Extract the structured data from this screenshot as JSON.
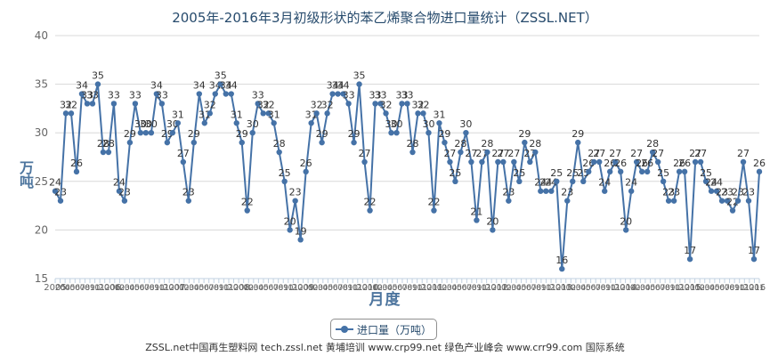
{
  "chart_data": {
    "type": "line",
    "title": "2005年-2016年3月初级形状的苯乙烯聚合物进口量统计（ZSSL.NET）",
    "ylabel": "万吨",
    "xlabel": "月度",
    "ylim": [
      15,
      40
    ],
    "yticks": [
      "15",
      "20",
      "25",
      "30",
      "35",
      "40"
    ],
    "grid": true,
    "legend_position": "bottom-center",
    "series": [
      {
        "name": "进口量（万吨）",
        "color": "#4572a7",
        "values": [
          24,
          23,
          32,
          32,
          26,
          34,
          33,
          33,
          35,
          28,
          28,
          33,
          24,
          23,
          29,
          33,
          30,
          30,
          30,
          34,
          33,
          29,
          30,
          31,
          27,
          23,
          29,
          34,
          31,
          32,
          34,
          35,
          34,
          34,
          31,
          29,
          22,
          30,
          33,
          32,
          32,
          31,
          28,
          25,
          20,
          23,
          19,
          26,
          31,
          32,
          29,
          32,
          34,
          34,
          34,
          33,
          29,
          35,
          27,
          22,
          33,
          33,
          32,
          30,
          30,
          33,
          33,
          28,
          32,
          32,
          30,
          22,
          31,
          29,
          27,
          25,
          28,
          30,
          27,
          21,
          27,
          28,
          20,
          27,
          27,
          23,
          27,
          25,
          29,
          27,
          28,
          24,
          24,
          24,
          25,
          16,
          23,
          25,
          29,
          25,
          26,
          27,
          27,
          24,
          26,
          27,
          26,
          20,
          24,
          27,
          26,
          26,
          28,
          27,
          25,
          23,
          23,
          26,
          26,
          17,
          27,
          27,
          25,
          24,
          24,
          23,
          23,
          22,
          23,
          27,
          23,
          17,
          26
        ]
      }
    ],
    "x_tick_labels_visible": [
      "2005",
      "20",
      "04",
      "05",
      "06",
      "07",
      "08",
      "09",
      "10",
      "11",
      "12",
      "2006",
      "01",
      "02",
      "03",
      "04",
      "05",
      "06",
      "07",
      "08",
      "09",
      "10",
      "11",
      "12",
      "2007",
      "01",
      "02",
      "03",
      "04",
      "05",
      "06",
      "07",
      "08",
      "09",
      "10",
      "11",
      "12",
      "2008",
      "01",
      "02",
      "03",
      "04",
      "05",
      "06",
      "07",
      "08",
      "09",
      "10",
      "11",
      "12",
      "2009",
      "01",
      "02",
      "03",
      "04",
      "05",
      "06",
      "07",
      "08",
      "09",
      "10",
      "11",
      "12",
      "2010",
      "01",
      "02",
      "03",
      "04",
      "05",
      "06",
      "07",
      "08",
      "09",
      "10",
      "11",
      "12",
      "2011",
      "01",
      "02",
      "03",
      "04",
      "05",
      "06",
      "07",
      "08",
      "09",
      "10",
      "11",
      "12",
      "2012",
      "01",
      "02",
      "03",
      "04",
      "05",
      "06",
      "07",
      "08",
      "09",
      "10",
      "11",
      "12",
      "2013",
      "01",
      "02",
      "03",
      "04",
      "05",
      "06",
      "07",
      "08",
      "09",
      "10",
      "11",
      "12",
      "2014",
      "01",
      "02",
      "03",
      "04",
      "05",
      "06",
      "07",
      "08",
      "09",
      "10",
      "11",
      "12",
      "2015",
      "01",
      "02",
      "03",
      "04",
      "05",
      "06",
      "07",
      "08",
      "09",
      "10",
      "11",
      "12",
      "2016",
      "01"
    ]
  },
  "footer": "ZSSL.net中国再生塑料网 tech.zssl.net 黄埔培训 www.crp99.net 绿色产业峰会 www.crr99.com 国际系统",
  "legend_label": "进口量（万吨）"
}
